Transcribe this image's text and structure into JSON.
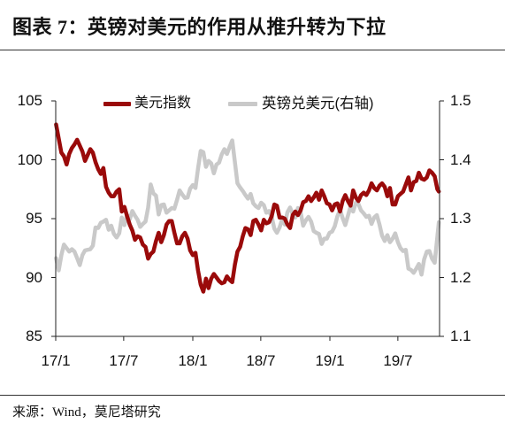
{
  "source": "来源：Wind，莫尼塔研究",
  "chart_data": {
    "type": "line",
    "title": "图表 7：英镑对美元的作用从推升转为下拉",
    "legend_position": "top-center",
    "grid": false,
    "x_range": [
      "2017-01-01",
      "2019-10-20"
    ],
    "x_ticks": [
      {
        "value": "2017-01-01",
        "label": "17/1"
      },
      {
        "value": "2017-07-01",
        "label": "17/7"
      },
      {
        "value": "2018-01-01",
        "label": "18/1"
      },
      {
        "value": "2018-07-01",
        "label": "18/7"
      },
      {
        "value": "2019-01-01",
        "label": "19/1"
      },
      {
        "value": "2019-07-01",
        "label": "19/7"
      }
    ],
    "y_left": {
      "range": [
        85,
        105
      ],
      "ticks": [
        85,
        90,
        95,
        100,
        105
      ]
    },
    "y_right": {
      "range": [
        1.1,
        1.5
      ],
      "ticks": [
        1.1,
        1.2,
        1.3,
        1.4,
        1.5
      ]
    },
    "x": [
      "2017-01-02",
      "2017-01-09",
      "2017-01-16",
      "2017-01-23",
      "2017-01-30",
      "2017-02-06",
      "2017-02-13",
      "2017-02-20",
      "2017-02-27",
      "2017-03-06",
      "2017-03-13",
      "2017-03-20",
      "2017-03-27",
      "2017-04-03",
      "2017-04-10",
      "2017-04-17",
      "2017-04-24",
      "2017-05-01",
      "2017-05-08",
      "2017-05-15",
      "2017-05-22",
      "2017-05-29",
      "2017-06-05",
      "2017-06-12",
      "2017-06-19",
      "2017-06-26",
      "2017-07-03",
      "2017-07-10",
      "2017-07-17",
      "2017-07-24",
      "2017-07-31",
      "2017-08-07",
      "2017-08-14",
      "2017-08-21",
      "2017-08-28",
      "2017-09-04",
      "2017-09-11",
      "2017-09-18",
      "2017-09-25",
      "2017-10-02",
      "2017-10-09",
      "2017-10-16",
      "2017-10-23",
      "2017-10-30",
      "2017-11-06",
      "2017-11-13",
      "2017-11-20",
      "2017-11-27",
      "2017-12-04",
      "2017-12-11",
      "2017-12-18",
      "2017-12-25",
      "2018-01-01",
      "2018-01-08",
      "2018-01-15",
      "2018-01-22",
      "2018-01-29",
      "2018-02-05",
      "2018-02-12",
      "2018-02-19",
      "2018-02-26",
      "2018-03-05",
      "2018-03-12",
      "2018-03-19",
      "2018-03-26",
      "2018-04-02",
      "2018-04-09",
      "2018-04-16",
      "2018-04-23",
      "2018-04-30",
      "2018-05-07",
      "2018-05-14",
      "2018-05-21",
      "2018-05-28",
      "2018-06-04",
      "2018-06-11",
      "2018-06-18",
      "2018-06-25",
      "2018-07-02",
      "2018-07-09",
      "2018-07-16",
      "2018-07-23",
      "2018-07-30",
      "2018-08-06",
      "2018-08-13",
      "2018-08-20",
      "2018-08-27",
      "2018-09-03",
      "2018-09-10",
      "2018-09-17",
      "2018-09-24",
      "2018-10-01",
      "2018-10-08",
      "2018-10-15",
      "2018-10-22",
      "2018-10-29",
      "2018-11-05",
      "2018-11-12",
      "2018-11-19",
      "2018-11-26",
      "2018-12-03",
      "2018-12-10",
      "2018-12-17",
      "2018-12-24",
      "2018-12-31",
      "2019-01-07",
      "2019-01-14",
      "2019-01-21",
      "2019-01-28",
      "2019-02-04",
      "2019-02-11",
      "2019-02-18",
      "2019-02-25",
      "2019-03-04",
      "2019-03-11",
      "2019-03-18",
      "2019-03-25",
      "2019-04-01",
      "2019-04-08",
      "2019-04-15",
      "2019-04-22",
      "2019-04-29",
      "2019-05-06",
      "2019-05-13",
      "2019-05-20",
      "2019-05-27",
      "2019-06-03",
      "2019-06-10",
      "2019-06-17",
      "2019-06-24",
      "2019-07-01",
      "2019-07-08",
      "2019-07-15",
      "2019-07-22",
      "2019-07-29",
      "2019-08-05",
      "2019-08-12",
      "2019-08-19",
      "2019-08-26",
      "2019-09-02",
      "2019-09-09",
      "2019-09-16",
      "2019-09-23",
      "2019-09-30",
      "2019-10-07",
      "2019-10-14",
      "2019-10-18"
    ],
    "series": [
      {
        "name": "美元指数",
        "axis": "left",
        "color": "#9A0A0A",
        "values": [
          103.0,
          101.8,
          100.6,
          100.3,
          99.6,
          100.5,
          101.0,
          101.3,
          101.7,
          101.2,
          100.7,
          99.9,
          100.4,
          100.9,
          100.6,
          99.8,
          99.2,
          98.8,
          99.3,
          97.7,
          97.2,
          96.9,
          96.9,
          97.3,
          97.5,
          95.6,
          96.0,
          95.2,
          94.5,
          94.0,
          93.2,
          93.5,
          93.4,
          92.8,
          92.6,
          91.6,
          92.0,
          92.2,
          93.1,
          93.8,
          93.0,
          93.6,
          94.5,
          94.8,
          94.8,
          93.8,
          92.9,
          92.9,
          93.5,
          93.8,
          93.3,
          92.3,
          91.9,
          92.1,
          90.6,
          89.4,
          88.8,
          89.9,
          89.1,
          89.9,
          90.3,
          90.0,
          89.7,
          89.5,
          89.6,
          90.1,
          89.8,
          89.6,
          91.1,
          92.2,
          92.6,
          93.5,
          94.2,
          94.1,
          93.6,
          94.8,
          94.9,
          94.5,
          94.0,
          94.9,
          94.6,
          94.7,
          95.2,
          96.2,
          96.1,
          95.1,
          95.1,
          95.0,
          94.5,
          94.2,
          95.3,
          95.6,
          95.3,
          95.7,
          96.4,
          96.5,
          96.9,
          96.5,
          96.8,
          97.2,
          96.6,
          97.4,
          96.9,
          96.3,
          96.2,
          95.7,
          96.2,
          96.3,
          95.6,
          96.5,
          97.0,
          96.5,
          96.1,
          97.4,
          96.8,
          96.5,
          97.0,
          97.2,
          97.0,
          97.4,
          98.0,
          97.6,
          97.4,
          97.8,
          98.0,
          97.7,
          96.9,
          97.6,
          96.2,
          96.2,
          96.9,
          97.1,
          97.3,
          97.9,
          98.5,
          97.4,
          98.1,
          98.2,
          98.9,
          98.4,
          98.3,
          98.5,
          99.1,
          98.9,
          98.6,
          97.5,
          97.3
        ]
      },
      {
        "name": "英镑兑美元(右轴)",
        "axis": "right",
        "color": "#C9C9C9",
        "values": [
          1.233,
          1.212,
          1.238,
          1.256,
          1.25,
          1.244,
          1.248,
          1.244,
          1.233,
          1.221,
          1.238,
          1.246,
          1.247,
          1.248,
          1.254,
          1.285,
          1.284,
          1.293,
          1.295,
          1.298,
          1.281,
          1.288,
          1.274,
          1.268,
          1.275,
          1.302,
          1.289,
          1.306,
          1.299,
          1.313,
          1.305,
          1.298,
          1.286,
          1.291,
          1.295,
          1.319,
          1.358,
          1.343,
          1.339,
          1.307,
          1.323,
          1.324,
          1.31,
          1.314,
          1.318,
          1.317,
          1.332,
          1.348,
          1.341,
          1.335,
          1.336,
          1.351,
          1.357,
          1.352,
          1.385,
          1.415,
          1.413,
          1.388,
          1.398,
          1.394,
          1.377,
          1.392,
          1.395,
          1.409,
          1.418,
          1.41,
          1.422,
          1.433,
          1.396,
          1.36,
          1.353,
          1.347,
          1.34,
          1.334,
          1.342,
          1.326,
          1.321,
          1.318,
          1.327,
          1.323,
          1.31,
          1.313,
          1.303,
          1.283,
          1.276,
          1.285,
          1.299,
          1.29,
          1.311,
          1.319,
          1.307,
          1.302,
          1.318,
          1.311,
          1.288,
          1.297,
          1.303,
          1.295,
          1.279,
          1.276,
          1.274,
          1.257,
          1.266,
          1.266,
          1.276,
          1.278,
          1.287,
          1.304,
          1.315,
          1.301,
          1.289,
          1.305,
          1.321,
          1.312,
          1.327,
          1.325,
          1.314,
          1.309,
          1.303,
          1.305,
          1.291,
          1.302,
          1.306,
          1.29,
          1.271,
          1.262,
          1.272,
          1.26,
          1.266,
          1.275,
          1.26,
          1.25,
          1.245,
          1.247,
          1.215,
          1.213,
          1.208,
          1.215,
          1.223,
          1.205,
          1.231,
          1.244,
          1.245,
          1.232,
          1.225,
          1.269,
          1.294
        ]
      }
    ]
  }
}
